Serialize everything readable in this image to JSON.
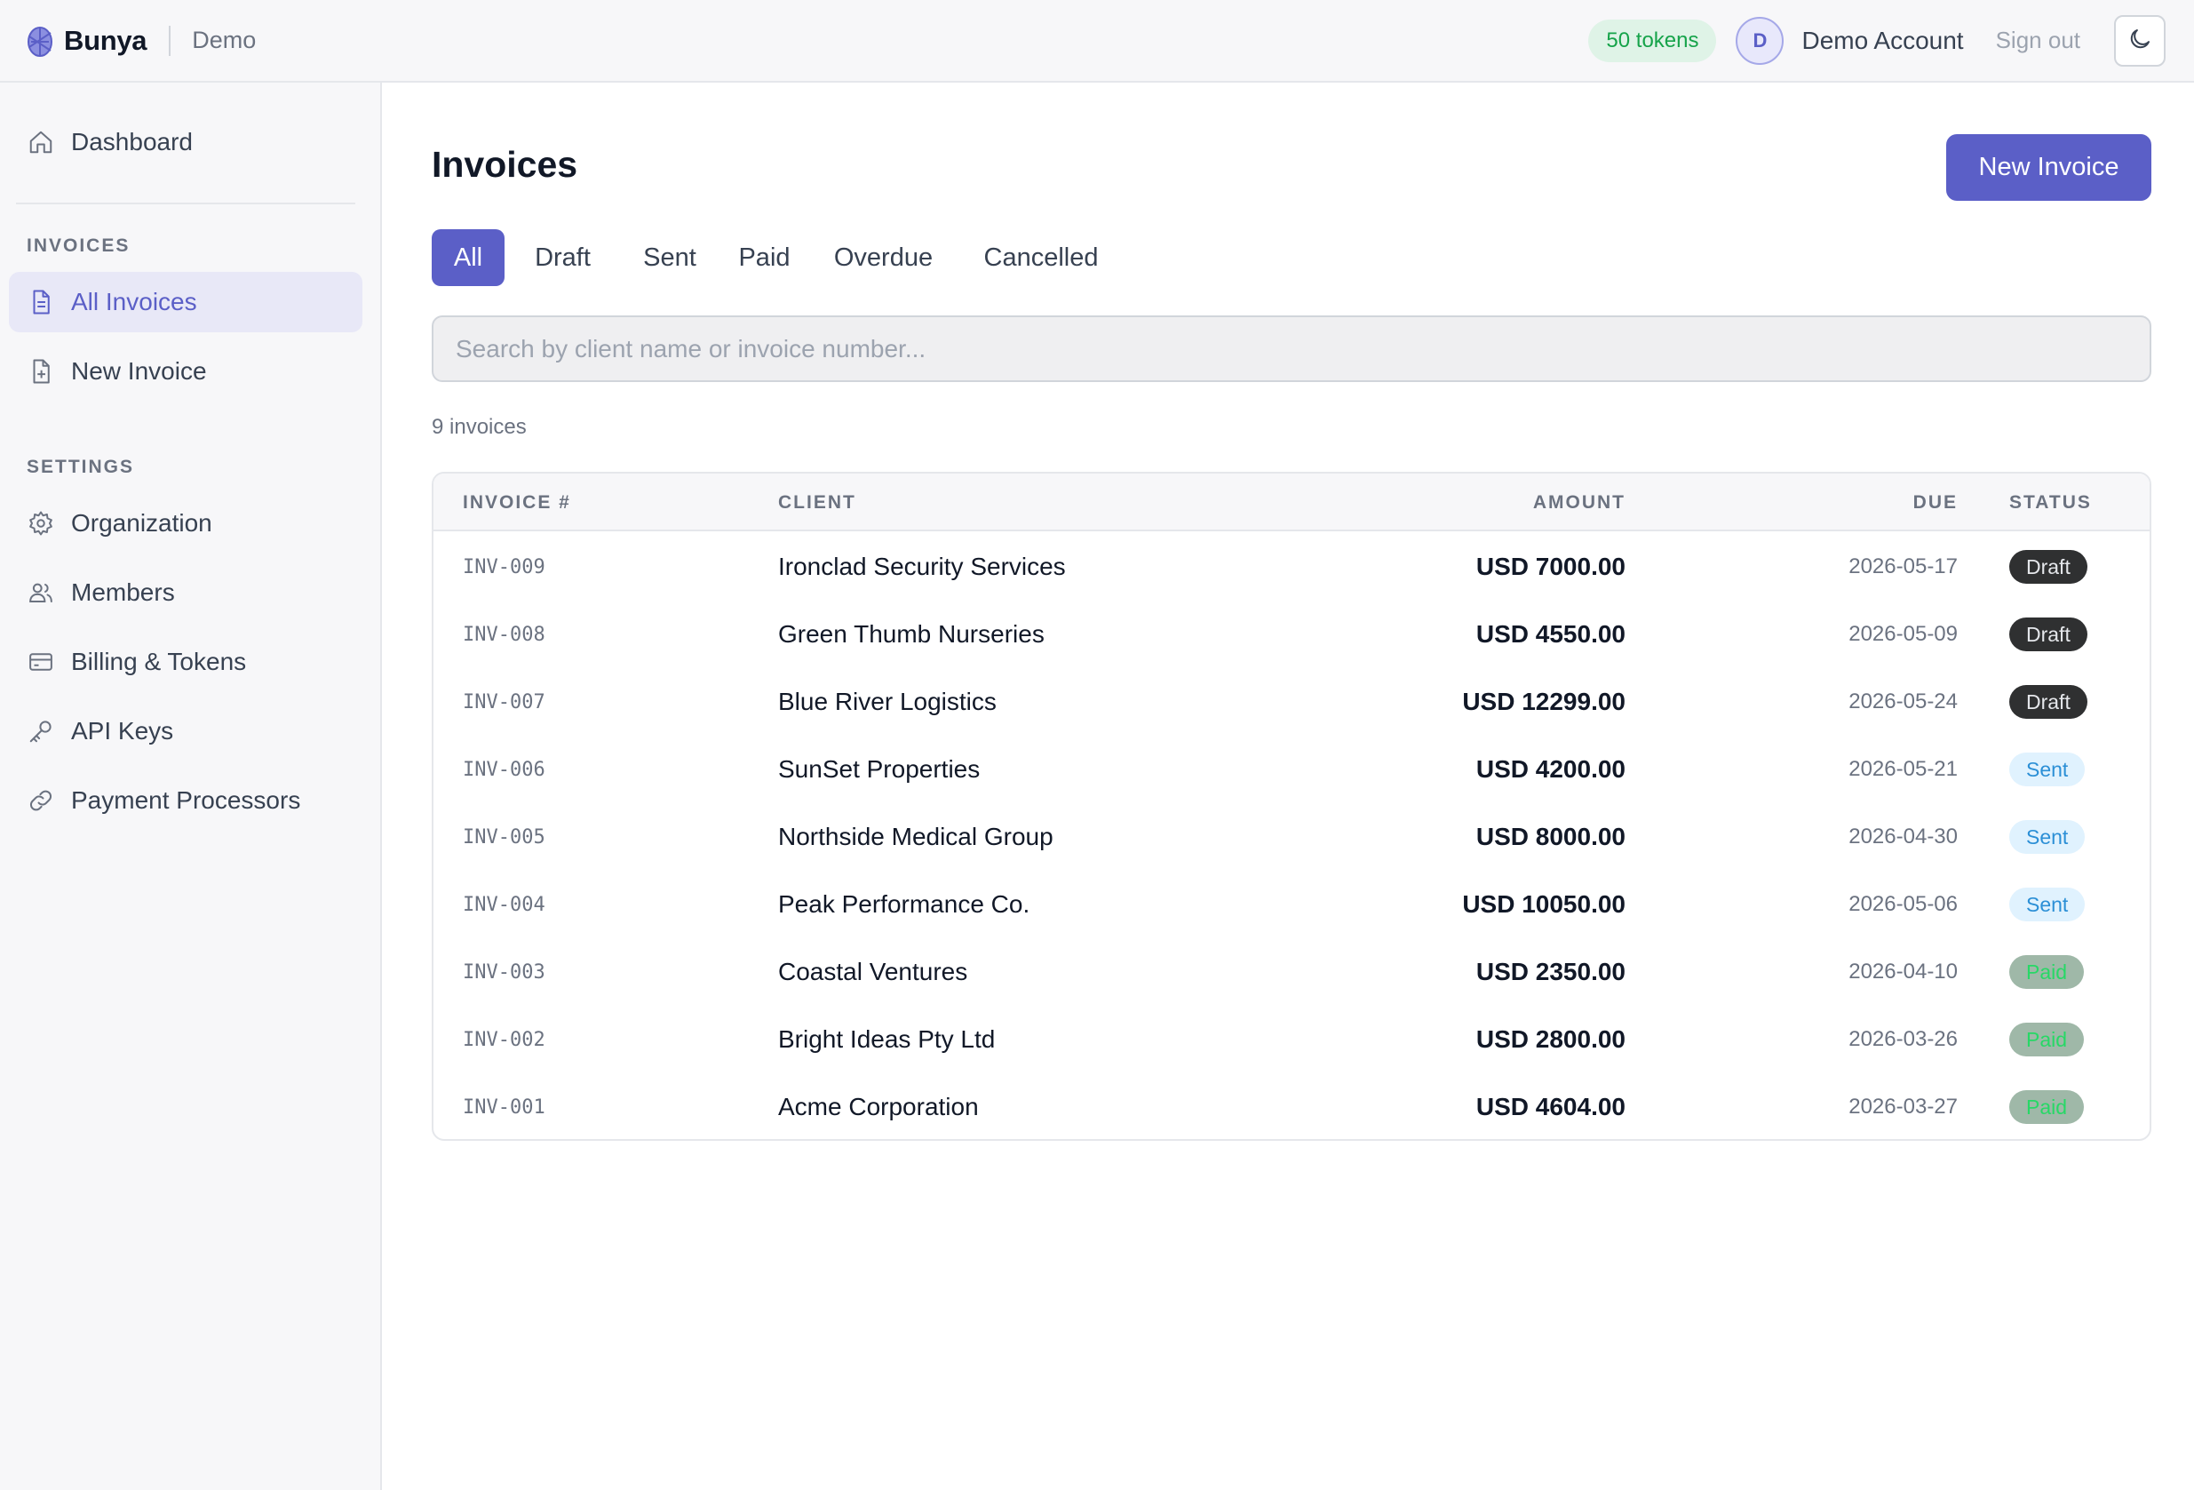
{
  "topbar": {
    "brand": "Bunya",
    "org": "Demo",
    "tokens": "50 tokens",
    "avatar_initial": "D",
    "user_name": "Demo Account",
    "sign_out": "Sign out"
  },
  "sidebar": {
    "dashboard": "Dashboard",
    "invoices_section": "INVOICES",
    "all_invoices": "All Invoices",
    "new_invoice": "New Invoice",
    "settings_section": "SETTINGS",
    "organization": "Organization",
    "members": "Members",
    "billing": "Billing & Tokens",
    "api_keys": "API Keys",
    "payment_processors": "Payment Processors"
  },
  "main": {
    "title": "Invoices",
    "new_invoice_button": "New Invoice",
    "tabs": [
      "All",
      "Draft",
      "Sent",
      "Paid",
      "Overdue",
      "Cancelled"
    ],
    "active_tab": "All",
    "search_placeholder": "Search by client name or invoice number...",
    "count": "9 invoices"
  },
  "table": {
    "columns": [
      "INVOICE #",
      "CLIENT",
      "AMOUNT",
      "DUE",
      "STATUS"
    ],
    "rows": [
      {
        "number": "INV-009",
        "client": "Ironclad Security Services",
        "amount": "USD 7000.00",
        "due": "2026-05-17",
        "status": "Draft"
      },
      {
        "number": "INV-008",
        "client": "Green Thumb Nurseries",
        "amount": "USD 4550.00",
        "due": "2026-05-09",
        "status": "Draft"
      },
      {
        "number": "INV-007",
        "client": "Blue River Logistics",
        "amount": "USD 12299.00",
        "due": "2026-05-24",
        "status": "Draft"
      },
      {
        "number": "INV-006",
        "client": "SunSet Properties",
        "amount": "USD 4200.00",
        "due": "2026-05-21",
        "status": "Sent"
      },
      {
        "number": "INV-005",
        "client": "Northside Medical Group",
        "amount": "USD 8000.00",
        "due": "2026-04-30",
        "status": "Sent"
      },
      {
        "number": "INV-004",
        "client": "Peak Performance Co.",
        "amount": "USD 10050.00",
        "due": "2026-05-06",
        "status": "Sent"
      },
      {
        "number": "INV-003",
        "client": "Coastal Ventures",
        "amount": "USD 2350.00",
        "due": "2026-04-10",
        "status": "Paid"
      },
      {
        "number": "INV-002",
        "client": "Bright Ideas Pty Ltd",
        "amount": "USD 2800.00",
        "due": "2026-03-26",
        "status": "Paid"
      },
      {
        "number": "INV-001",
        "client": "Acme Corporation",
        "amount": "USD 4604.00",
        "due": "2026-03-27",
        "status": "Paid"
      }
    ]
  },
  "colors": {
    "accent": "#5b5fc7",
    "tokens_bg": "#dff3e7",
    "tokens_text": "#16a34a",
    "draft_badge": "#2f3031",
    "sent_badge": "#e0f2fe",
    "paid_badge": "#9fb8a8"
  },
  "icons": {
    "brand": "pinecone-logo-icon",
    "theme": "moon-icon",
    "dashboard": "home-icon",
    "all_invoices": "file-text-icon",
    "new_invoice": "file-plus-icon",
    "organization": "gear-icon",
    "members": "users-icon",
    "billing": "credit-card-icon",
    "api_keys": "key-icon",
    "payment_processors": "link-icon"
  }
}
